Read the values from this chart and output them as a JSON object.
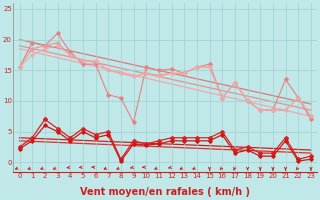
{
  "bg_color": "#c0e8e8",
  "grid_color": "#a0cfcf",
  "xlabel": "Vent moyen/en rafales ( km/h )",
  "ylim": [
    -1.5,
    26
  ],
  "xlim": [
    -0.5,
    23.5
  ],
  "yticks": [
    0,
    5,
    10,
    15,
    20,
    25
  ],
  "xticks": [
    0,
    1,
    2,
    3,
    4,
    5,
    6,
    7,
    8,
    9,
    10,
    11,
    12,
    13,
    14,
    15,
    16,
    17,
    18,
    19,
    20,
    21,
    22,
    23
  ],
  "series_light": [
    {
      "x": [
        0,
        1,
        2,
        3,
        4,
        5,
        6,
        7,
        8,
        9,
        10,
        11,
        12,
        13,
        14,
        15,
        16,
        17,
        18,
        19,
        20,
        21,
        22,
        23
      ],
      "y": [
        15.5,
        19.5,
        19.0,
        21.0,
        18.0,
        16.0,
        16.0,
        11.0,
        10.5,
        6.5,
        15.5,
        15.0,
        15.2,
        14.5,
        15.5,
        16.0,
        10.5,
        13.0,
        10.0,
        8.5,
        8.5,
        13.5,
        10.5,
        7.0
      ],
      "color": "#e88080",
      "lw": 0.8,
      "marker": "D",
      "ms": 1.8
    },
    {
      "x": [
        0,
        1,
        2,
        3,
        4,
        5,
        6,
        7,
        8,
        9,
        10,
        11,
        12,
        13,
        14,
        15,
        16,
        17,
        18,
        19,
        20,
        21,
        22,
        23
      ],
      "y": [
        15.5,
        18.5,
        19.0,
        19.5,
        17.5,
        16.5,
        16.5,
        15.0,
        14.5,
        14.0,
        14.5,
        14.2,
        14.5,
        14.5,
        15.5,
        15.5,
        10.5,
        13.0,
        10.0,
        8.5,
        8.5,
        8.5,
        10.5,
        7.5
      ],
      "color": "#e89898",
      "lw": 0.8,
      "marker": "D",
      "ms": 1.5
    },
    {
      "x": [
        0,
        1,
        2,
        3,
        4,
        5,
        6,
        7,
        8,
        9,
        10,
        11,
        12,
        13,
        14,
        15,
        16,
        17,
        18,
        19,
        20,
        21,
        22,
        23
      ],
      "y": [
        15.5,
        17.5,
        18.5,
        19.0,
        17.5,
        16.5,
        16.5,
        15.0,
        14.5,
        14.0,
        14.5,
        14.0,
        14.5,
        14.5,
        15.5,
        15.5,
        10.5,
        13.0,
        10.0,
        8.5,
        8.5,
        8.5,
        10.5,
        7.5
      ],
      "color": "#f0a8a8",
      "lw": 0.8,
      "marker": "D",
      "ms": 1.5
    }
  ],
  "trend_lines": [
    {
      "x0": 0,
      "y0": 20.0,
      "x1": 23,
      "y1": 9.5,
      "color": "#e07878",
      "lw": 0.9
    },
    {
      "x0": 0,
      "y0": 19.0,
      "x1": 23,
      "y1": 8.5,
      "color": "#e89090",
      "lw": 0.9
    },
    {
      "x0": 0,
      "y0": 18.5,
      "x1": 23,
      "y1": 7.5,
      "color": "#f0a8a8",
      "lw": 0.9
    },
    {
      "x0": 0,
      "y0": 4.0,
      "x1": 23,
      "y1": 2.0,
      "color": "#cc2020",
      "lw": 0.9
    },
    {
      "x0": 0,
      "y0": 3.5,
      "x1": 23,
      "y1": 1.5,
      "color": "#dd3030",
      "lw": 0.9
    }
  ],
  "series_dark": [
    {
      "x": [
        0,
        1,
        2,
        3,
        4,
        5,
        6,
        7,
        8,
        9,
        10,
        11,
        12,
        13,
        14,
        15,
        16,
        17,
        18,
        19,
        20,
        21,
        22,
        23
      ],
      "y": [
        2.5,
        4.0,
        7.0,
        5.5,
        4.0,
        5.5,
        4.5,
        5.0,
        0.5,
        3.5,
        3.0,
        3.5,
        4.0,
        4.0,
        4.0,
        4.0,
        5.0,
        2.0,
        2.5,
        1.5,
        1.5,
        4.0,
        0.5,
        1.0
      ],
      "color": "#dd2020",
      "lw": 0.9,
      "marker": "D",
      "ms": 2.0
    },
    {
      "x": [
        0,
        1,
        2,
        3,
        4,
        5,
        6,
        7,
        8,
        9,
        10,
        11,
        12,
        13,
        14,
        15,
        16,
        17,
        18,
        19,
        20,
        21,
        22,
        23
      ],
      "y": [
        2.2,
        3.5,
        6.0,
        5.0,
        3.5,
        5.0,
        4.0,
        4.5,
        0.2,
        3.0,
        2.8,
        3.0,
        3.5,
        3.5,
        3.5,
        3.5,
        4.5,
        1.5,
        2.0,
        1.0,
        1.0,
        3.5,
        0.2,
        0.5
      ],
      "color": "#cc1818",
      "lw": 0.9,
      "marker": "D",
      "ms": 1.8
    }
  ],
  "arrow_color": "#cc2020",
  "axis_label_color": "#cc2020",
  "tick_color": "#cc2020",
  "xlabel_fontsize": 7.0,
  "tick_fontsize": 5.0,
  "left_spine_color": "#888888",
  "bottom_spine_color": "#cc2020"
}
